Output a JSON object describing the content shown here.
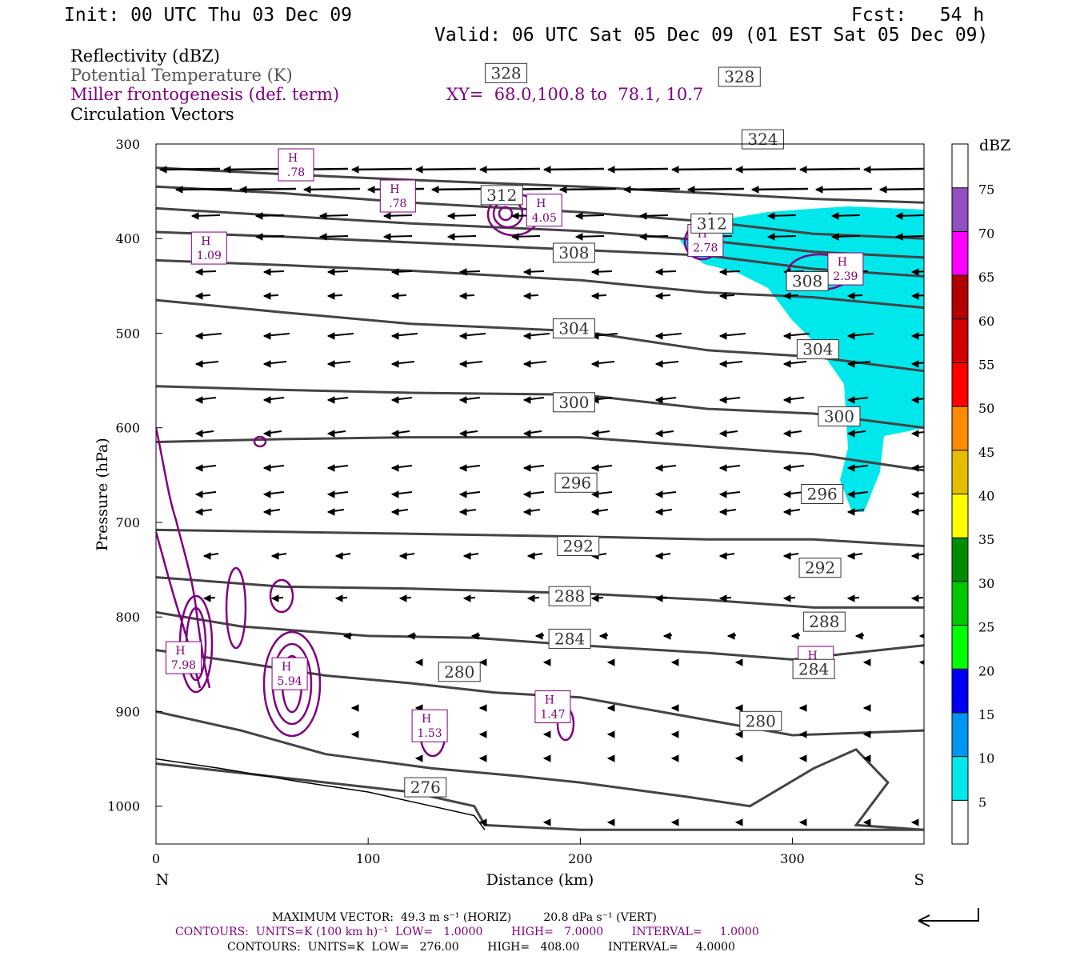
{
  "header": {
    "init": "Init: 00 UTC Thu 03 Dec 09",
    "fcst": "Fcst:   54 h",
    "valid": "Valid: 06 UTC Sat 05 Dec 09 (01 EST Sat 05 Dec 09)"
  },
  "legend": {
    "reflectivity": "Reflectivity (dBZ)",
    "theta": "Potential Temperature (K)",
    "frontogenesis": "Miller frontogenesis (def. term)",
    "xy": "XY=  68.0,100.8 to  78.1, 10.7",
    "vectors": "Circulation Vectors"
  },
  "footer": {
    "max_vector": "MAXIMUM VECTOR:  49.3 m s⁻¹ (HORIZ)         20.8 dPa s⁻¹ (VERT)",
    "contours_fronto": "CONTOURS:  UNITS=K (100 km h)⁻¹  LOW=   1.0000        HIGH=   7.0000        INTERVAL=     1.0000",
    "contours_theta": "CONTOURS:  UNITS=K  LOW=   276.00        HIGH=   408.00        INTERVAL=     4.0000"
  },
  "colors": {
    "frontogenesis": "#800080",
    "theta": "#444444",
    "reflectivity_fill": "#00e8ec"
  },
  "chart_data": {
    "type": "line",
    "xlabel": "Distance (km)",
    "ylabel": "Pressure (hPa)",
    "xlim": [
      0,
      362
    ],
    "ylim": [
      1040,
      300
    ],
    "xticks": [
      0,
      100,
      200,
      300
    ],
    "yticks": [
      300,
      400,
      500,
      600,
      700,
      800,
      900,
      1000
    ],
    "x_end_labels": {
      "left": "N",
      "right": "S"
    },
    "grid": false,
    "theta_contours": [
      {
        "label": "276",
        "label_at": [
          127,
          980
        ],
        "points": [
          [
            0,
            955
          ],
          [
            40,
            965
          ],
          [
            80,
            975
          ],
          [
            120,
            985
          ],
          [
            150,
            1000
          ],
          [
            155,
            1020
          ],
          [
            200,
            1025
          ],
          [
            300,
            1025
          ],
          [
            362,
            1025
          ]
        ]
      },
      {
        "label": "280",
        "label_at": [
          143,
          858
        ],
        "points": [
          [
            0,
            900
          ],
          [
            40,
            920
          ],
          [
            80,
            945
          ],
          [
            130,
            960
          ],
          [
            170,
            968
          ],
          [
            200,
            975
          ],
          [
            250,
            990
          ],
          [
            280,
            1000
          ],
          [
            310,
            960
          ],
          [
            330,
            940
          ],
          [
            345,
            975
          ],
          [
            330,
            1020
          ],
          [
            362,
            1025
          ]
        ],
        "label2": "280",
        "label2_at": [
          285,
          910
        ]
      },
      {
        "label": "284",
        "label_at": [
          195,
          823
        ],
        "points": [
          [
            0,
            835
          ],
          [
            40,
            848
          ],
          [
            80,
            862
          ],
          [
            120,
            870
          ],
          [
            160,
            880
          ],
          [
            200,
            885
          ],
          [
            250,
            905
          ],
          [
            300,
            925
          ],
          [
            362,
            920
          ]
        ],
        "label2": "284",
        "label2_at": [
          310,
          855
        ]
      },
      {
        "label": "288",
        "label_at": [
          195,
          778
        ],
        "points": [
          [
            0,
            795
          ],
          [
            40,
            810
          ],
          [
            100,
            820
          ],
          [
            150,
            822
          ],
          [
            200,
            830
          ],
          [
            260,
            838
          ],
          [
            300,
            845
          ],
          [
            362,
            830
          ]
        ],
        "label2": "288",
        "label2_at": [
          315,
          805
        ]
      },
      {
        "label": "292",
        "label_at": [
          199,
          725
        ],
        "points": [
          [
            0,
            758
          ],
          [
            60,
            768
          ],
          [
            120,
            770
          ],
          [
            200,
            775
          ],
          [
            260,
            782
          ],
          [
            310,
            790
          ],
          [
            362,
            790
          ]
        ],
        "label2": "292",
        "label2_at": [
          313,
          748
        ]
      },
      {
        "label": "296",
        "label_at": [
          198,
          658
        ],
        "points": [
          [
            0,
            708
          ],
          [
            60,
            710
          ],
          [
            120,
            712
          ],
          [
            200,
            715
          ],
          [
            260,
            718
          ],
          [
            310,
            718
          ],
          [
            362,
            725
          ]
        ],
        "label2": "296",
        "label2_at": [
          314,
          670
        ]
      },
      {
        "label": "300",
        "label_at": [
          197,
          573
        ],
        "points": [
          [
            0,
            615
          ],
          [
            60,
            612
          ],
          [
            120,
            610
          ],
          [
            200,
            610
          ],
          [
            260,
            620
          ],
          [
            310,
            628
          ],
          [
            362,
            645
          ]
        ],
        "label2": "300",
        "label2_at": [
          322,
          588
        ]
      },
      {
        "label": "304",
        "label_at": [
          197,
          495
        ],
        "points": [
          [
            0,
            556
          ],
          [
            60,
            560
          ],
          [
            120,
            563
          ],
          [
            200,
            565
          ],
          [
            260,
            580
          ],
          [
            310,
            585
          ],
          [
            362,
            600
          ]
        ],
        "label2": "304",
        "label2_at": [
          312,
          517
        ]
      },
      {
        "label": "308",
        "label_at": [
          197,
          415
        ],
        "points": [
          [
            0,
            465
          ],
          [
            60,
            478
          ],
          [
            120,
            490
          ],
          [
            200,
            498
          ],
          [
            260,
            518
          ],
          [
            310,
            525
          ],
          [
            362,
            540
          ]
        ],
        "label2": "308",
        "label2_at": [
          307,
          445
        ]
      },
      {
        "label": "312",
        "label_at": [
          163,
          354
        ],
        "points": [
          [
            0,
            423
          ],
          [
            60,
            428
          ],
          [
            120,
            434
          ],
          [
            200,
            444
          ],
          [
            260,
            457
          ],
          [
            310,
            462
          ],
          [
            362,
            473
          ]
        ],
        "label2": "312",
        "label2_at": [
          262,
          384
        ]
      },
      {
        "label": "324",
        "label_at": [
          286,
          295
        ],
        "points": [
          [
            0,
            393
          ],
          [
            60,
            398
          ],
          [
            120,
            404
          ],
          [
            200,
            412
          ],
          [
            260,
            418
          ],
          [
            310,
            432
          ],
          [
            362,
            440
          ]
        ]
      },
      {
        "label": "328",
        "label_at": [
          165,
          225
        ],
        "points": [
          [
            0,
            325
          ],
          [
            60,
            332
          ],
          [
            120,
            338
          ],
          [
            200,
            345
          ],
          [
            260,
            352
          ],
          [
            310,
            358
          ],
          [
            362,
            362
          ]
        ],
        "label2": "328",
        "label2_at": [
          275,
          229
        ]
      }
    ],
    "extra_theta_lines": [
      [
        [
          0,
          345
        ],
        [
          60,
          352
        ],
        [
          120,
          362
        ],
        [
          200,
          372
        ],
        [
          260,
          382
        ],
        [
          310,
          395
        ],
        [
          362,
          400
        ]
      ],
      [
        [
          0,
          368
        ],
        [
          60,
          376
        ],
        [
          120,
          384
        ],
        [
          200,
          392
        ],
        [
          260,
          402
        ],
        [
          310,
          414
        ],
        [
          362,
          420
        ]
      ],
      [
        [
          0,
          950
        ],
        [
          30,
          960
        ],
        [
          70,
          975
        ],
        [
          100,
          985
        ],
        [
          130,
          1000
        ],
        [
          150,
          1010
        ],
        [
          155,
          1025
        ]
      ]
    ],
    "frontogenesis_maxima": [
      {
        "label": "H",
        "value": ".78",
        "at": [
          66,
          322
        ]
      },
      {
        "label": "H",
        "value": ".78",
        "at": [
          114,
          355
        ]
      },
      {
        "label": "H",
        "value": "4.05",
        "at": [
          183,
          370
        ]
      },
      {
        "label": "H",
        "value": "1.09",
        "at": [
          25,
          410
        ]
      },
      {
        "label": "H",
        "value": "2.78",
        "at": [
          259,
          402
        ]
      },
      {
        "label": "H",
        "value": "2.39",
        "at": [
          325,
          432
        ]
      },
      {
        "label": "H",
        "value": "7.98",
        "at": [
          13,
          843
        ]
      },
      {
        "label": "H",
        "value": "5.94",
        "at": [
          63,
          860
        ]
      },
      {
        "label": "H",
        "value": "1.53",
        "at": [
          129,
          915
        ]
      },
      {
        "label": "H",
        "value": "1.47",
        "at": [
          187,
          895
        ]
      },
      {
        "label": "H",
        "value": ".87",
        "at": [
          311,
          848
        ]
      }
    ],
    "reflectivity_scale": {
      "unit": "dBZ",
      "levels": [
        "5",
        "10",
        "15",
        "20",
        "25",
        "30",
        "35",
        "40",
        "45",
        "50",
        "55",
        "60",
        "65",
        "70",
        "75"
      ],
      "colors": [
        "#ffffff",
        "#00e8ec",
        "#0096f0",
        "#0000f0",
        "#00ff00",
        "#00c800",
        "#008c00",
        "#ffff00",
        "#e6be00",
        "#ff8c00",
        "#ff0000",
        "#d00000",
        "#b00000",
        "#ff00ff",
        "#9050c0",
        "#ffffff"
      ]
    }
  }
}
